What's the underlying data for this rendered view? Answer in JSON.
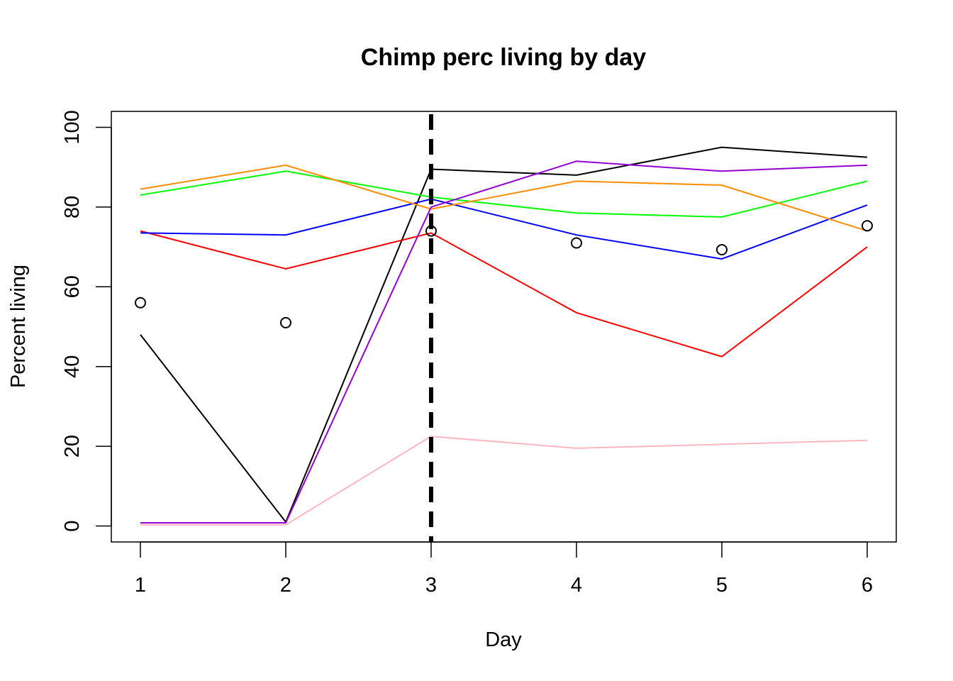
{
  "chart_data": {
    "type": "line",
    "title": "Chimp perc living by day",
    "xlabel": "Day",
    "ylabel": "Percent living",
    "x": [
      1,
      2,
      3,
      4,
      5,
      6
    ],
    "xlim": [
      0.8,
      6.2
    ],
    "ylim": [
      -4,
      104
    ],
    "xticks": [
      "1",
      "2",
      "3",
      "4",
      "5",
      "6"
    ],
    "yticks": [
      "0",
      "20",
      "40",
      "60",
      "80",
      "100"
    ],
    "grid": false,
    "legend": "none",
    "series": [
      {
        "color": "#000000",
        "values": [
          48,
          1,
          89.5,
          88,
          95,
          92.5
        ]
      },
      {
        "color": "#ff0000",
        "values": [
          74,
          64.5,
          73.5,
          53.5,
          42.5,
          70
        ]
      },
      {
        "color": "#00ff00",
        "values": [
          83,
          89,
          82.5,
          78.5,
          77.5,
          86.5
        ]
      },
      {
        "color": "#0000ff",
        "values": [
          73.5,
          73,
          82,
          73,
          67,
          80.5
        ]
      },
      {
        "color": "#ff8c00",
        "values": [
          84.5,
          90.5,
          79.5,
          86.5,
          85.5,
          74
        ]
      },
      {
        "color": "#9400d3",
        "values": [
          0.8,
          0.8,
          80,
          91.5,
          89,
          90.5
        ]
      },
      {
        "color": "#ffb6c1",
        "values": [
          0.3,
          0.3,
          22.5,
          19.5,
          20.5,
          21.5
        ]
      }
    ],
    "points": {
      "marker": "open-circle",
      "values": [
        56,
        51,
        74,
        71,
        69.3,
        75.3
      ]
    },
    "vline": {
      "x": 3,
      "style": "dashed",
      "color": "#000000"
    }
  }
}
